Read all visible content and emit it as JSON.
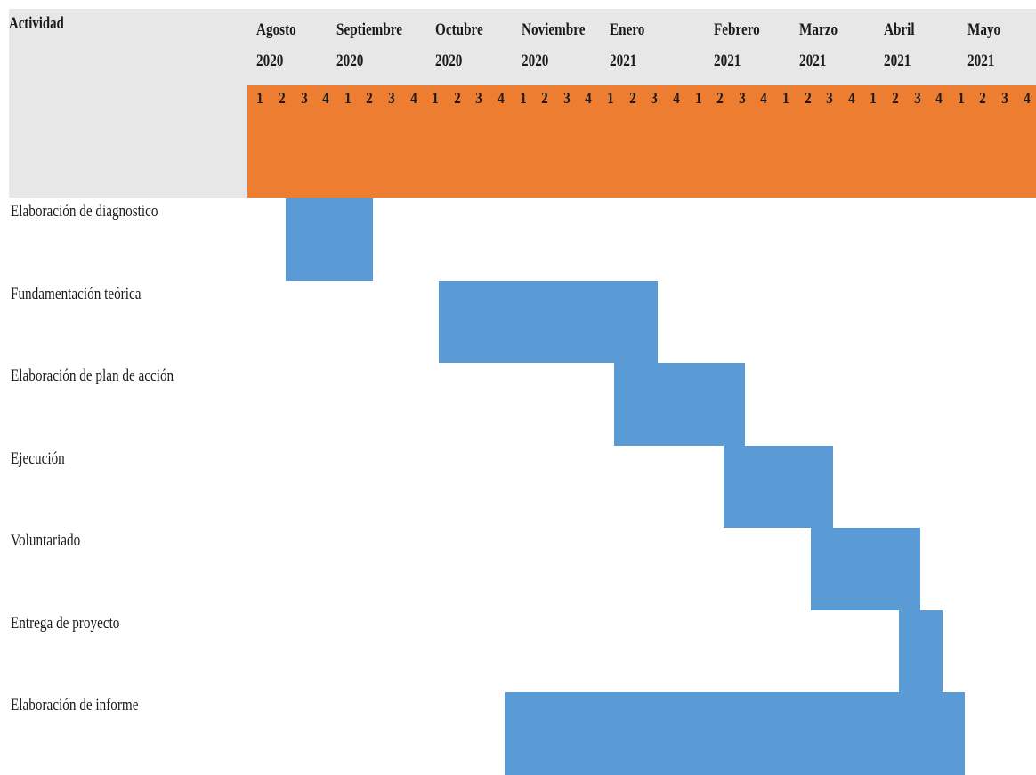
{
  "colors": {
    "header_gray": "#e7e7e7",
    "header_orange": "#ed7d31",
    "bar_blue": "#5b9bd5"
  },
  "header": {
    "activity_label": "Actividad"
  },
  "chart_data": {
    "type": "gantt",
    "months": [
      {
        "name": "Agosto",
        "year": "2020",
        "weeks": [
          "1",
          "2",
          "3",
          "4"
        ]
      },
      {
        "name": "Septiembre",
        "year": "2020",
        "weeks": [
          "1",
          "2",
          "3",
          "4"
        ]
      },
      {
        "name": "Octubre",
        "year": "2020",
        "weeks": [
          "1",
          "2",
          "3",
          "4"
        ]
      },
      {
        "name": "Noviembre",
        "year": "2020",
        "weeks": [
          "1",
          "2",
          "3",
          "4"
        ]
      },
      {
        "name": "Enero",
        "year": "2021",
        "weeks": [
          "1",
          "2",
          "3",
          "4"
        ]
      },
      {
        "name": "Febrero",
        "year": "2021",
        "weeks": [
          "1",
          "2",
          "3",
          "4"
        ]
      },
      {
        "name": "Marzo",
        "year": "2021",
        "weeks": [
          "1",
          "2",
          "3",
          "4"
        ]
      },
      {
        "name": "Abril",
        "year": "2021",
        "weeks": [
          "1",
          "2",
          "3",
          "4"
        ]
      },
      {
        "name": "Mayo",
        "year": "2021",
        "weeks": [
          "1",
          "2",
          "3",
          "4"
        ]
      }
    ],
    "tasks": [
      {
        "name": "Elaboración de diagnostico",
        "start_week": 2,
        "end_week": 5
      },
      {
        "name": "Fundamentación teórica",
        "start_week": 9,
        "end_week": 18
      },
      {
        "name": "Elaboración de plan de acción",
        "start_week": 17,
        "end_week": 22
      },
      {
        "name": "Ejecución",
        "start_week": 22,
        "end_week": 26
      },
      {
        "name": "Voluntariado",
        "start_week": 26,
        "end_week": 30
      },
      {
        "name": "Entrega de proyecto",
        "start_week": 30,
        "end_week": 31
      },
      {
        "name": "Elaboración de informe",
        "start_week": 12,
        "end_week": 32
      }
    ]
  }
}
